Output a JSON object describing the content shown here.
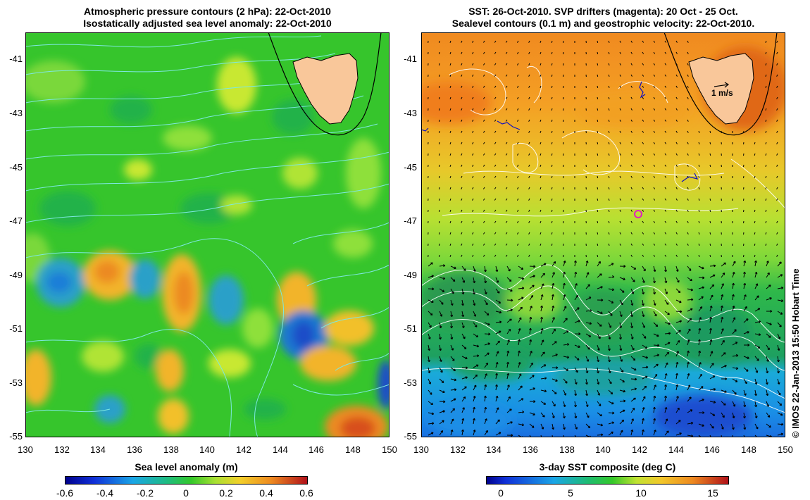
{
  "left_panel": {
    "title_line1": "Atmospheric pressure contours (2 hPa): 22-Oct-2010",
    "title_line2": "Isostatically adjusted sea level anomaly: 22-Oct-2010",
    "y_ticks": [
      "-41",
      "-43",
      "-45",
      "-47",
      "-49",
      "-51",
      "-53",
      "-55"
    ],
    "x_ticks": [
      "130",
      "132",
      "134",
      "136",
      "138",
      "140",
      "142",
      "144",
      "146",
      "148",
      "150"
    ],
    "colorbar_label": "Sea level anomaly (m)",
    "colorbar_ticks": [
      "-0.6",
      "-0.4",
      "-0.2",
      "0",
      "0.2",
      "0.4",
      "0.6"
    ]
  },
  "right_panel": {
    "title_line1": "SST: 26-Oct-2010. SVP drifters (magenta): 20 Oct - 25 Oct.",
    "title_line2": "Sealevel contours (0.1 m) and geostrophic velocity: 22-Oct-2010.",
    "y_ticks": [
      "-41",
      "-43",
      "-45",
      "-47",
      "-49",
      "-51",
      "-53",
      "-55"
    ],
    "x_ticks": [
      "130",
      "132",
      "134",
      "136",
      "138",
      "140",
      "142",
      "144",
      "146",
      "148",
      "150"
    ],
    "velocity_scale_label": "1 m/s",
    "colorbar_label": "3-day SST composite (deg C)",
    "colorbar_ticks": [
      "0",
      "5",
      "10",
      "15"
    ]
  },
  "credit": "© IMOS 22-Jan-2013 15:50 Hobart Time",
  "colors": {
    "land": "#f9c79a",
    "sla_background": "#33c82e",
    "sst_warm": "#f39a22",
    "sst_cold": "#1aa6e6"
  }
}
